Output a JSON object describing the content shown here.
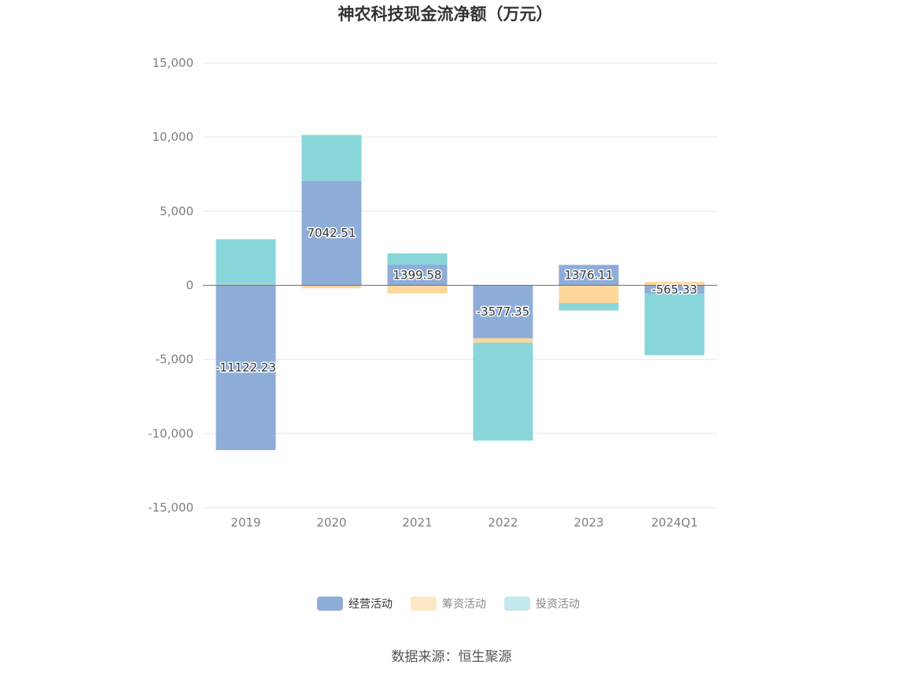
{
  "chart_data": {
    "type": "bar",
    "stacked": true,
    "title": "神农科技现金流净额（万元）",
    "categories": [
      "2019",
      "2020",
      "2021",
      "2022",
      "2023",
      "2024Q1"
    ],
    "series": [
      {
        "name": "经营活动",
        "color": "#8eadd9",
        "values": [
          -11122.23,
          7042.51,
          1399.58,
          -3577.35,
          1376.11,
          -565.33
        ],
        "data_labels": [
          "-11122.23",
          "7042.51",
          "1399.58",
          "-3577.35",
          "1376.11",
          "-565.33"
        ]
      },
      {
        "name": "筹资活动",
        "color": "#fdd79b",
        "values": [
          50,
          -200,
          -550,
          -300,
          -1200,
          230
        ]
      },
      {
        "name": "投资活动",
        "color": "#88d5da",
        "values": [
          3050,
          3100,
          750,
          -6600,
          -500,
          -4150
        ]
      }
    ],
    "ylim": [
      -15000,
      15000
    ],
    "yticks": [
      15000,
      10000,
      5000,
      0,
      -5000,
      -10000,
      -15000
    ],
    "ytick_labels": [
      "15,000",
      "10,000",
      "5,000",
      "0",
      "-5,000",
      "-10,000",
      "-15,000"
    ],
    "grid": true,
    "legend_position": "bottom-center"
  },
  "legend_colors": {
    "active": [
      "#8eadd9",
      "#fde7c6",
      "#c4e9ec"
    ]
  },
  "source": "数据来源：恒生聚源"
}
